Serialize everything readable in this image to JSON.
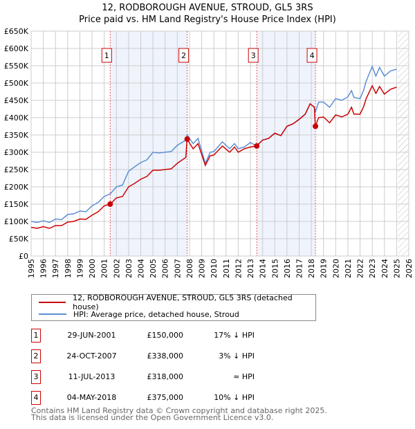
{
  "chart_data": {
    "type": "line",
    "title": "12, RODBOROUGH AVENUE, STROUD, GL5 3RS",
    "subtitle": "Price paid vs. HM Land Registry's House Price Index (HPI)",
    "xlim": [
      1995,
      2026
    ],
    "ylim": [
      0,
      650000
    ],
    "yticks": [
      "£0",
      "£50K",
      "£100K",
      "£150K",
      "£200K",
      "£250K",
      "£300K",
      "£350K",
      "£400K",
      "£450K",
      "£500K",
      "£550K",
      "£600K",
      "£650K"
    ],
    "xticks": [
      "1995",
      "1996",
      "1997",
      "1998",
      "1999",
      "2000",
      "2001",
      "2002",
      "2003",
      "2004",
      "2005",
      "2006",
      "2007",
      "2008",
      "2009",
      "2010",
      "2011",
      "2012",
      "2013",
      "2014",
      "2015",
      "2016",
      "2017",
      "2018",
      "2019",
      "2020",
      "2021",
      "2022",
      "2023",
      "2024",
      "2025",
      "2026"
    ],
    "grid": true,
    "series": [
      {
        "name": "12, RODBOROUGH AVENUE, STROUD, GL5 3RS (detached house)",
        "color": "#cc0000",
        "x": [
          1995,
          1995.5,
          1996,
          1996.5,
          1997,
          1997.5,
          1998,
          1998.5,
          1999,
          1999.5,
          2000,
          2000.5,
          2001,
          2001.5,
          2002,
          2002.5,
          2003,
          2003.5,
          2004,
          2004.5,
          2005,
          2005.5,
          2006,
          2006.5,
          2007,
          2007.7,
          2007.8,
          2008.3,
          2008.7,
          2009.3,
          2009.7,
          2010,
          2010.7,
          2011.3,
          2011.7,
          2012,
          2012.5,
          2013,
          2013.5,
          2014,
          2014.5,
          2015,
          2015.5,
          2016,
          2016.5,
          2017,
          2017.5,
          2017.9,
          2018.25,
          2018.33,
          2018.6,
          2019,
          2019.5,
          2020,
          2020.5,
          2021,
          2021.3,
          2021.5,
          2022,
          2022.3,
          2022.5,
          2023,
          2023.3,
          2023.6,
          2024,
          2024.5,
          2025
        ],
        "y": [
          83,
          80,
          85,
          80,
          88,
          88,
          98,
          100,
          107,
          106,
          118,
          128,
          145,
          150,
          168,
          172,
          200,
          210,
          222,
          230,
          248,
          248,
          250,
          252,
          268,
          285,
          338,
          310,
          325,
          262,
          290,
          292,
          318,
          300,
          315,
          300,
          310,
          315,
          318,
          335,
          340,
          355,
          348,
          375,
          382,
          395,
          410,
          440,
          430,
          375,
          400,
          402,
          385,
          408,
          402,
          410,
          430,
          410,
          410,
          432,
          455,
          492,
          470,
          490,
          468,
          482,
          488
        ]
      },
      {
        "name": "HPI: Average price, detached house, Stroud",
        "color": "#5b8fd4",
        "x": [
          1995,
          1995.5,
          1996,
          1996.5,
          1997,
          1997.5,
          1998,
          1998.5,
          1999,
          1999.5,
          2000,
          2000.5,
          2001,
          2001.5,
          2002,
          2002.5,
          2003,
          2003.5,
          2004,
          2004.5,
          2005,
          2005.5,
          2006,
          2006.5,
          2007,
          2007.7,
          2007.8,
          2008.3,
          2008.7,
          2009.3,
          2009.7,
          2010,
          2010.7,
          2011.3,
          2011.7,
          2012,
          2012.5,
          2013,
          2013.5,
          2014,
          2014.5,
          2015,
          2015.5,
          2016,
          2016.5,
          2017,
          2017.5,
          2017.9,
          2018.25,
          2018.33,
          2018.6,
          2019,
          2019.5,
          2020,
          2020.5,
          2021,
          2021.3,
          2021.5,
          2022,
          2022.3,
          2022.5,
          2023,
          2023.3,
          2023.6,
          2024,
          2024.5,
          2025
        ],
        "y": [
          100,
          97,
          102,
          97,
          107,
          105,
          120,
          122,
          130,
          128,
          145,
          155,
          172,
          180,
          200,
          205,
          245,
          258,
          270,
          278,
          300,
          298,
          300,
          302,
          320,
          335,
          350,
          325,
          340,
          268,
          300,
          302,
          330,
          310,
          325,
          310,
          315,
          328,
          318,
          335,
          340,
          355,
          348,
          375,
          382,
          395,
          410,
          440,
          430,
          415,
          445,
          445,
          430,
          455,
          450,
          460,
          478,
          458,
          455,
          480,
          505,
          548,
          520,
          545,
          520,
          535,
          540
        ]
      }
    ],
    "sales": [
      {
        "label": "1",
        "x": 2001.49,
        "y": 150000,
        "date": "29-JUN-2001",
        "price": "£150,000",
        "hpi": "17% ↓ HPI"
      },
      {
        "label": "2",
        "x": 2007.81,
        "y": 338000,
        "date": "24-OCT-2007",
        "price": "£338,000",
        "hpi": "3% ↓ HPI"
      },
      {
        "label": "3",
        "x": 2013.52,
        "y": 318000,
        "date": "11-JUL-2013",
        "price": "£318,000",
        "hpi": "≈ HPI"
      },
      {
        "label": "4",
        "x": 2018.34,
        "y": 375000,
        "date": "04-MAY-2018",
        "price": "£375,000",
        "hpi": "10% ↓ HPI"
      }
    ],
    "shaded": [
      [
        2001.49,
        2007.81
      ],
      [
        2013.52,
        2018.34
      ]
    ],
    "forecast_from": 2025.1
  },
  "footer": [
    "Contains HM Land Registry data © Crown copyright and database right 2025.",
    "This data is licensed under the Open Government Licence v3.0."
  ]
}
